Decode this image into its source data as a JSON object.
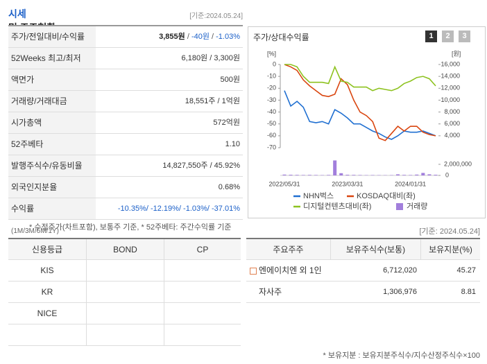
{
  "header": {
    "title_highlight": "시세",
    "title_rest": "및 주주현황",
    "date": "[기준:2024.05.24]"
  },
  "price_table": {
    "rows": [
      {
        "label": "주가/전일대비/수익률",
        "segments": [
          {
            "text": "3,855원",
            "color": "#222222",
            "bold": true
          },
          {
            "text": " / ",
            "color": "#555555"
          },
          {
            "text": "-40원",
            "color": "#1a5fc8"
          },
          {
            "text": " / ",
            "color": "#555555"
          },
          {
            "text": "-1.03%",
            "color": "#1a5fc8"
          }
        ]
      },
      {
        "label": "52Weeks 최고/최저",
        "segments": [
          {
            "text": "6,180원 / 3,300원",
            "color": "#333333"
          }
        ]
      },
      {
        "label": "액면가",
        "segments": [
          {
            "text": "500원",
            "color": "#333333"
          }
        ]
      },
      {
        "label": "거래량/거래대금",
        "segments": [
          {
            "text": "18,551주 / 1억원",
            "color": "#333333"
          }
        ]
      },
      {
        "label": "시가총액",
        "segments": [
          {
            "text": "572억원",
            "color": "#333333"
          }
        ]
      },
      {
        "label": "52주베타",
        "segments": [
          {
            "text": "1.10",
            "color": "#333333"
          }
        ]
      },
      {
        "label": "발행주식수/유동비율",
        "segments": [
          {
            "text": "14,827,550주 / 45.92%",
            "color": "#333333"
          }
        ]
      },
      {
        "label": "외국인지분율",
        "segments": [
          {
            "text": "0.68%",
            "color": "#333333"
          }
        ]
      },
      {
        "label": "수익률",
        "sublabel": "(1M/3M/6M/1Y)",
        "segments": [
          {
            "text": "-10.35%/ -12.19%/ -1.03%/ -37.01%",
            "color": "#1a5fc8"
          }
        ]
      }
    ],
    "note": "* 수정주가(차트포함), 보통주 기준, * 52주베타: 주간수익률 기준"
  },
  "chart_panel": {
    "title": "주가/상대수익률",
    "tabs": [
      "1",
      "2",
      "3"
    ],
    "date": "[기준: 2024.05.24]"
  },
  "chart_data": {
    "type": "line",
    "y_unit": "[%]",
    "y2_unit": "[원]",
    "categories": [
      "2022/05/31",
      null,
      null,
      null,
      null,
      null,
      null,
      null,
      null,
      null,
      "2023/03/31",
      null,
      null,
      null,
      null,
      null,
      null,
      null,
      null,
      null,
      "2024/01/31",
      null,
      null,
      null,
      null
    ],
    "ylim": [
      -70,
      0
    ],
    "yticks": [
      0,
      -10,
      -20,
      -30,
      -40,
      -50,
      -60,
      -70
    ],
    "y2lim": [
      2000,
      16000
    ],
    "y2ticks": [
      {
        "value": 16000,
        "label": "16,000"
      },
      {
        "value": 14000,
        "label": "14,000"
      },
      {
        "value": 12000,
        "label": "12,000"
      },
      {
        "value": 10000,
        "label": "10,000"
      },
      {
        "value": 8000,
        "label": "8,000"
      },
      {
        "value": 6000,
        "label": "6,000"
      },
      {
        "value": 4000,
        "label": "4,000"
      }
    ],
    "series": [
      {
        "name": "NHN벅스",
        "color": "#1f6fd1",
        "values": [
          -22,
          -35,
          -31,
          -36,
          -48,
          -49,
          -48,
          -50,
          -38,
          -41,
          -45,
          -50,
          -50,
          -53,
          -56,
          -58,
          -61,
          -63,
          -60,
          -56,
          -57,
          -57,
          -56,
          -58,
          -60
        ]
      },
      {
        "name": "KOSDAQ대비(좌)",
        "color": "#d9450f",
        "values": [
          0,
          -2,
          -5,
          -13,
          -18,
          -22,
          -26,
          -27,
          -25,
          -12,
          -17,
          -30,
          -40,
          -43,
          -48,
          -62,
          -64,
          -58,
          -52,
          -56,
          -52,
          -52,
          -57,
          -59,
          -60
        ]
      },
      {
        "name": "디지털컨텐츠대비(좌)",
        "color": "#8dc21f",
        "values": [
          0,
          0,
          -2,
          -10,
          -15,
          -15,
          -15,
          -16,
          -2,
          -14,
          -15,
          -19,
          -19,
          -19,
          -22,
          -20,
          -21,
          -22,
          -20,
          -16,
          -14,
          -11,
          -10,
          -12,
          -18
        ]
      }
    ],
    "volume": {
      "name": "거래량",
      "color": "#a27fdc",
      "ylim": [
        0,
        3000000
      ],
      "yticks": [
        {
          "value": 2000000,
          "label": "2,000,000"
        },
        0
      ],
      "values": [
        150000,
        120000,
        100000,
        80000,
        100000,
        80000,
        60000,
        90000,
        2700000,
        400000,
        120000,
        100000,
        80000,
        60000,
        70000,
        60000,
        50000,
        60000,
        200000,
        100000,
        80000,
        150000,
        450000,
        200000,
        120000
      ]
    }
  },
  "credit_table": {
    "header": [
      "신용등급",
      "BOND",
      "CP"
    ],
    "agencies": [
      "KIS",
      "KR",
      "NICE"
    ]
  },
  "holder_table": {
    "header": [
      "주요주주",
      "보유주식수(보통)",
      "보유지분(%)"
    ],
    "rows": [
      {
        "name": "엔에이치엔 외 1인",
        "shares": "6,712,020",
        "pct": "45.27",
        "icon": true
      },
      {
        "name": "자사주",
        "shares": "1,306,976",
        "pct": "8.81",
        "icon": false
      }
    ],
    "note": "* 보유지분 : 보유지분주식수/지수산정주식수×100"
  }
}
